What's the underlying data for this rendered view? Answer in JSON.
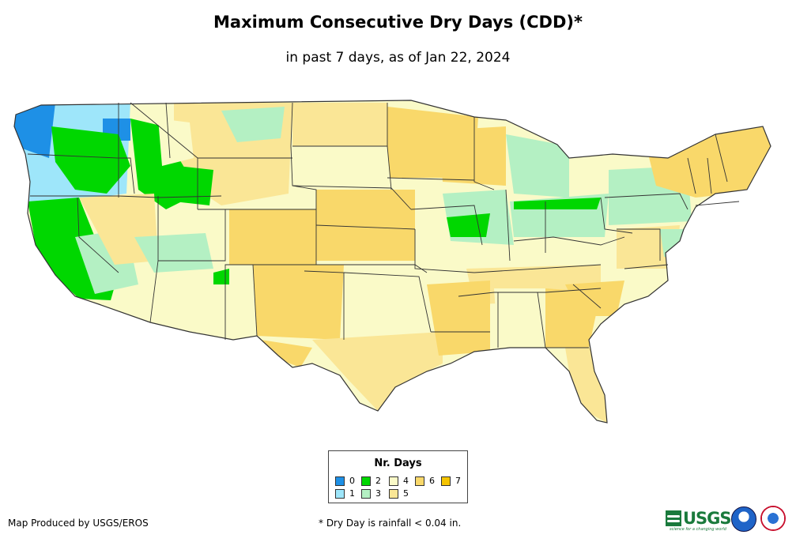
{
  "title": "Maximum Consecutive Dry Days (CDD)*",
  "subtitle": "in past 7 days, as of Jan 22, 2024",
  "legend": {
    "title": "Nr. Days",
    "items": [
      {
        "label": "0",
        "color": "#1e90e6"
      },
      {
        "label": "1",
        "color": "#9ee6fa"
      },
      {
        "label": "2",
        "color": "#00d700"
      },
      {
        "label": "3",
        "color": "#b4f0c3"
      },
      {
        "label": "4",
        "color": "#fafac8"
      },
      {
        "label": "5",
        "color": "#fae696"
      },
      {
        "label": "6",
        "color": "#f9d86a"
      },
      {
        "label": "7",
        "color": "#f5c400"
      }
    ]
  },
  "credit": "Map Produced by USGS/EROS",
  "footnote": "* Dry Day is rainfall < 0.04 in.",
  "logos": {
    "usgs": "USGS",
    "usgs_tagline": "science for a changing world"
  },
  "icons": [
    "usgs-logo-icon",
    "noaa-logo-icon",
    "nws-logo-icon"
  ]
}
